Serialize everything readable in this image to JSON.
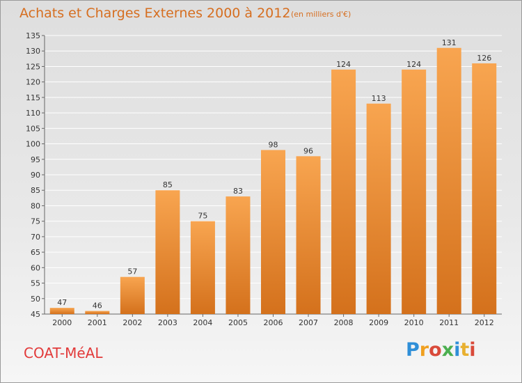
{
  "header": {
    "title": "Achats et Charges Externes 2000 à 2012",
    "subtitle": "(en milliers d'€)"
  },
  "footer": {
    "commune": "COAT-MéAL",
    "brand": "Proxiti",
    "brand_colors": [
      "#2f8fd8",
      "#f0a020",
      "#d94a3a",
      "#4caf50",
      "#2f8fd8",
      "#e8b030",
      "#d94a3a"
    ]
  },
  "chart_data": {
    "type": "bar",
    "title": "Achats et Charges Externes 2000 à 2012",
    "subtitle": "(en milliers d'€)",
    "xlabel": "",
    "ylabel": "",
    "categories": [
      "2000",
      "2001",
      "2002",
      "2003",
      "2004",
      "2005",
      "2006",
      "2007",
      "2008",
      "2009",
      "2010",
      "2011",
      "2012"
    ],
    "values": [
      47,
      46,
      57,
      85,
      75,
      83,
      98,
      96,
      124,
      113,
      124,
      131,
      126
    ],
    "ylim": [
      45,
      135
    ],
    "yticks": [
      45,
      50,
      55,
      60,
      65,
      70,
      75,
      80,
      85,
      90,
      95,
      100,
      105,
      110,
      115,
      120,
      125,
      130,
      135
    ],
    "grid": true,
    "bar_color_top": "#f8a550",
    "bar_color_bottom": "#d4711c",
    "grid_color": "#ffffff",
    "text_color": "#333333"
  }
}
